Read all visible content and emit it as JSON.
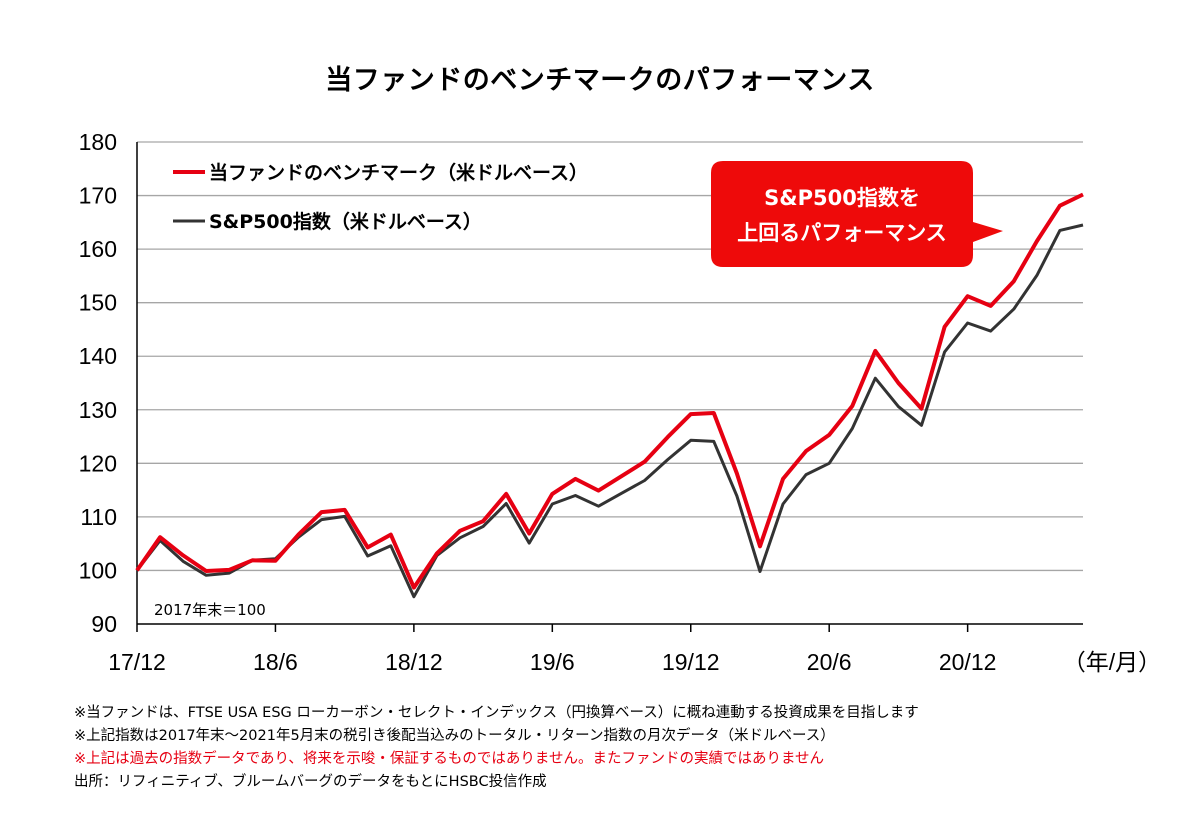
{
  "colors": {
    "fund": "#e60012",
    "sp500": "#333333",
    "grid": "#a6a6a6",
    "callout": "#ee0a0a"
  },
  "notes": {
    "line1": "※当ファンドは、FTSE USA ESG ローカーボン・セレクト・インデックス（円換算ベース）に概ね連動する投資成果を目指します",
    "line2": "※上記指数は2017年末～2021年5月末の税引き後配当込みのトータル・リターン指数の月次データ（米ドルベース）",
    "line3": "※上記は過去の指数データであり、将来を示唆・保証するものではありません。またファンドの実績ではありません",
    "source": "出所：リフィニティブ、ブルームバーグのデータをもとにHSBC投信作成"
  },
  "chart_data": {
    "type": "line",
    "title": "当ファンドのベンチマークのパフォーマンス",
    "x_unit": "（年/月）",
    "x_ticks": [
      "17/12",
      "18/6",
      "18/12",
      "19/6",
      "19/12",
      "20/6",
      "20/12"
    ],
    "ylim": [
      90,
      180
    ],
    "y_ticks": [
      90,
      100,
      110,
      120,
      130,
      140,
      150,
      160,
      170,
      180
    ],
    "grid": true,
    "legend_position": "top-left",
    "base_note": "2017年末＝100",
    "callout": {
      "line1": "S&P500指数を",
      "line2": "上回るパフォーマンス"
    },
    "x": [
      "2017-12",
      "2018-01",
      "2018-02",
      "2018-03",
      "2018-04",
      "2018-05",
      "2018-06",
      "2018-07",
      "2018-08",
      "2018-09",
      "2018-10",
      "2018-11",
      "2018-12",
      "2019-01",
      "2019-02",
      "2019-03",
      "2019-04",
      "2019-05",
      "2019-06",
      "2019-07",
      "2019-08",
      "2019-09",
      "2019-10",
      "2019-11",
      "2019-12",
      "2020-01",
      "2020-02",
      "2020-03",
      "2020-04",
      "2020-05",
      "2020-06",
      "2020-07",
      "2020-08",
      "2020-09",
      "2020-10",
      "2020-11",
      "2020-12",
      "2021-01",
      "2021-02",
      "2021-03",
      "2021-04",
      "2021-05"
    ],
    "series": [
      {
        "name": "当ファンドのベンチマーク（米ドルベース）",
        "values": [
          100,
          106.2,
          102.8,
          99.9,
          100.1,
          101.9,
          101.8,
          106.7,
          110.9,
          111.3,
          104.3,
          106.7,
          96.8,
          103.2,
          107.4,
          109.2,
          114.3,
          106.9,
          114.3,
          117.1,
          114.9,
          117.6,
          120.3,
          124.9,
          129.2,
          129.4,
          118.1,
          104.5,
          117.1,
          122.3,
          125.3,
          130.7,
          141,
          135,
          130.2,
          145.5,
          151.2,
          149.4,
          154,
          161.5,
          168.1,
          170.2
        ]
      },
      {
        "name": "S&P500指数（米ドルベース）",
        "values": [
          100,
          105.6,
          101.7,
          99.1,
          99.5,
          101.9,
          102.2,
          106.2,
          109.5,
          110.1,
          102.7,
          104.6,
          95.1,
          102.8,
          106.1,
          108.2,
          112.5,
          105.1,
          112.4,
          114,
          112,
          114.4,
          116.8,
          120.7,
          124.3,
          124.1,
          113.9,
          99.8,
          112.4,
          117.9,
          120,
          126.5,
          135.9,
          130.6,
          127.1,
          140.8,
          146.2,
          144.7,
          148.8,
          155.1,
          163.5,
          164.5
        ]
      }
    ]
  }
}
